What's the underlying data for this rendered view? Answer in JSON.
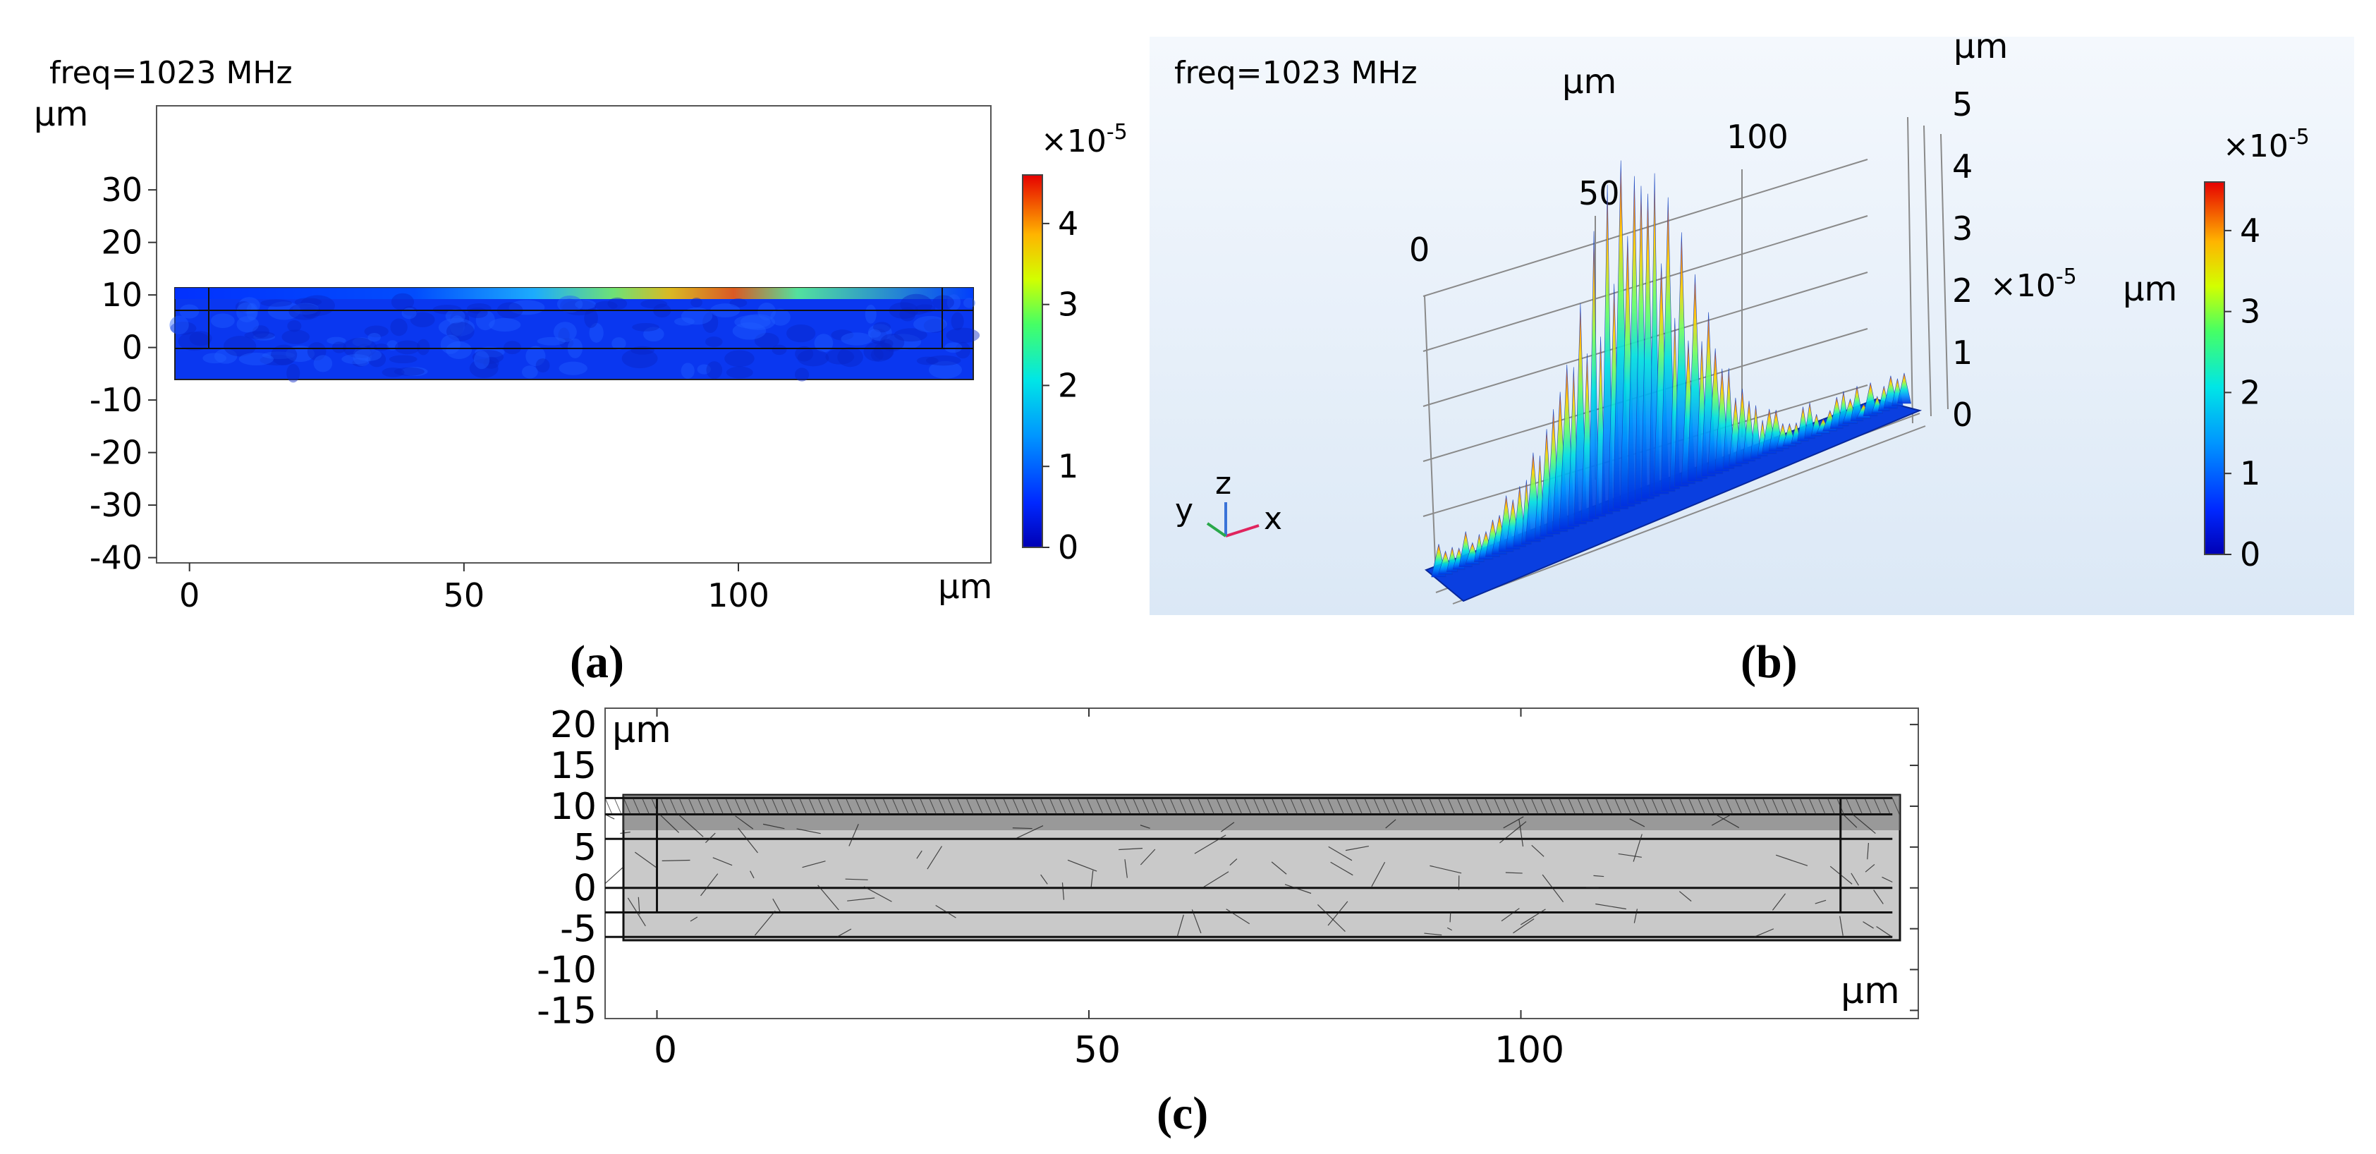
{
  "panel_a": {
    "freq_label": "freq=1023 MHz",
    "unit_y": "μm",
    "unit_x": "μm",
    "colorbar_exponent": "×10",
    "colorbar_exponent_power": "-5",
    "caption": "(a)"
  },
  "panel_b": {
    "freq_label": "freq=1023 MHz",
    "unit_y": "μm",
    "unit_z": "μm",
    "z_exponent": "×10",
    "z_exponent_power": "-5",
    "colorbar_exponent": "×10",
    "colorbar_exponent_power": "-5",
    "colorbar_unit": "μm",
    "axis_triad": {
      "x": "x",
      "y": "y",
      "z": "z"
    },
    "caption": "(b)"
  },
  "panel_c": {
    "unit_y": "μm",
    "unit_x": "μm",
    "caption": "(c)"
  },
  "chart_data": [
    {
      "type": "heatmap",
      "title": "freq=1023 MHz",
      "xlabel": "μm",
      "ylabel": "μm",
      "x_ticks": [
        0,
        50,
        100
      ],
      "y_ticks": [
        30,
        20,
        10,
        0,
        -10,
        -20,
        -30,
        -40
      ],
      "xlim": [
        -6,
        146
      ],
      "ylim": [
        -41,
        46
      ],
      "domain_rect": {
        "x": [
          -4,
          140
        ],
        "y": [
          -6,
          11
        ]
      },
      "colorbar": {
        "min": 0,
        "max": 4.6,
        "ticks": [
          0,
          1,
          2,
          3,
          4
        ],
        "scale_exponent": -5,
        "colormap": "rainbow"
      },
      "hotspot_x_range": [
        40,
        100
      ]
    },
    {
      "type": "surface3d",
      "title": "freq=1023 MHz",
      "y_ticks": [
        0,
        50,
        100
      ],
      "z_ticks": [
        0,
        1,
        2,
        3,
        4,
        5
      ],
      "z_scale_exponent": -5,
      "z_unit": "μm",
      "colorbar": {
        "min": 0,
        "max": 4.6,
        "ticks": [
          0,
          1,
          2,
          3,
          4
        ],
        "scale_exponent": -5,
        "unit": "μm",
        "colormap": "rainbow"
      },
      "peak_max": 4.5
    },
    {
      "type": "mesh",
      "xlabel": "μm",
      "ylabel": "μm",
      "x_ticks": [
        0,
        50,
        100
      ],
      "y_ticks": [
        20,
        15,
        10,
        5,
        0,
        -5,
        -10,
        -15
      ],
      "xlim": [
        -6,
        146
      ],
      "ylim": [
        -16,
        22
      ],
      "layers_y": [
        11,
        9,
        6,
        0,
        -3,
        -6
      ],
      "domain_x": [
        -6,
        143
      ],
      "electrode_x": [
        0,
        137
      ]
    }
  ]
}
